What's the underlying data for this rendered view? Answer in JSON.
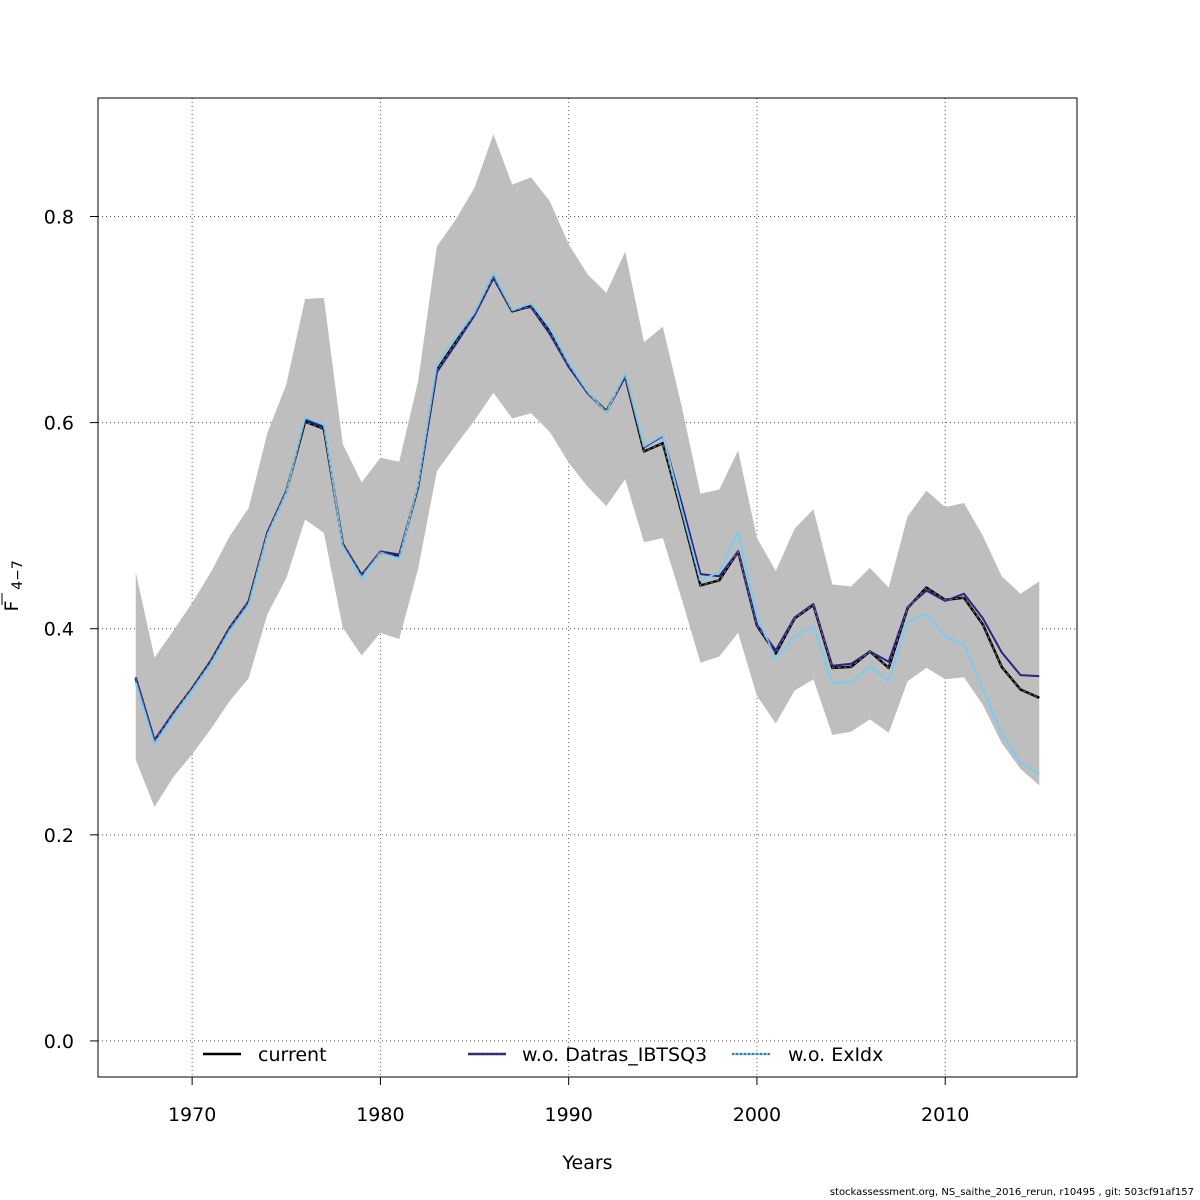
{
  "chart_data": {
    "type": "line",
    "xlabel": "Years",
    "ylabel": {
      "base": "F",
      "sub": "4−7"
    },
    "xlim": [
      1965,
      2017
    ],
    "ylim": [
      -0.035,
      0.915
    ],
    "x_ticks": [
      1970,
      1980,
      1990,
      2000,
      2010
    ],
    "y_ticks": [
      0.0,
      0.2,
      0.4,
      0.6,
      0.8
    ],
    "y_tick_labels": [
      "0.0",
      "0.2",
      "0.4",
      "0.6",
      "0.8"
    ],
    "grid": true,
    "legend_placement": "bottom",
    "x": [
      1967,
      1968,
      1969,
      1970,
      1971,
      1972,
      1973,
      1974,
      1975,
      1976,
      1977,
      1978,
      1979,
      1980,
      1981,
      1982,
      1983,
      1984,
      1985,
      1986,
      1987,
      1988,
      1989,
      1990,
      1991,
      1992,
      1993,
      1994,
      1995,
      1996,
      1997,
      1998,
      1999,
      2000,
      2001,
      2002,
      2003,
      2004,
      2005,
      2006,
      2007,
      2008,
      2009,
      2010,
      2011,
      2012,
      2013,
      2014,
      2015
    ],
    "band": {
      "color": "#bebebe",
      "upper": [
        0.455,
        0.372,
        0.398,
        0.425,
        0.455,
        0.49,
        0.517,
        0.59,
        0.637,
        0.72,
        0.721,
        0.579,
        0.542,
        0.566,
        0.562,
        0.64,
        0.771,
        0.797,
        0.828,
        0.88,
        0.831,
        0.838,
        0.815,
        0.773,
        0.744,
        0.726,
        0.766,
        0.678,
        0.693,
        0.616,
        0.531,
        0.535,
        0.573,
        0.488,
        0.456,
        0.497,
        0.516,
        0.443,
        0.441,
        0.459,
        0.44,
        0.509,
        0.534,
        0.518,
        0.522,
        0.49,
        0.451,
        0.434,
        0.446
      ],
      "lower": [
        0.273,
        0.227,
        0.256,
        0.278,
        0.303,
        0.33,
        0.352,
        0.414,
        0.449,
        0.506,
        0.493,
        0.401,
        0.374,
        0.396,
        0.39,
        0.458,
        0.553,
        0.578,
        0.602,
        0.629,
        0.604,
        0.609,
        0.591,
        0.561,
        0.538,
        0.519,
        0.545,
        0.484,
        0.488,
        0.429,
        0.367,
        0.373,
        0.396,
        0.335,
        0.308,
        0.34,
        0.351,
        0.297,
        0.3,
        0.312,
        0.299,
        0.349,
        0.362,
        0.351,
        0.353,
        0.326,
        0.289,
        0.264,
        0.248
      ]
    },
    "series": [
      {
        "name": "current",
        "color": "#000000",
        "dash": "",
        "values": [
          0.352,
          0.291,
          0.318,
          0.342,
          0.369,
          0.401,
          0.426,
          0.493,
          0.533,
          0.601,
          0.594,
          0.482,
          0.452,
          0.474,
          0.47,
          0.538,
          0.651,
          0.678,
          0.705,
          0.741,
          0.708,
          0.713,
          0.688,
          0.655,
          0.629,
          0.611,
          0.645,
          0.572,
          0.58,
          0.513,
          0.442,
          0.447,
          0.475,
          0.403,
          0.376,
          0.41,
          0.423,
          0.362,
          0.363,
          0.378,
          0.362,
          0.42,
          0.44,
          0.428,
          0.43,
          0.404,
          0.363,
          0.341,
          0.333
        ]
      },
      {
        "name": "w.o. Datras_IBTSQ3",
        "color": "#2b2485",
        "dash": "",
        "values": [
          0.353,
          0.292,
          0.318,
          0.342,
          0.369,
          0.401,
          0.426,
          0.493,
          0.533,
          0.603,
          0.596,
          0.482,
          0.452,
          0.475,
          0.472,
          0.538,
          0.649,
          0.676,
          0.704,
          0.74,
          0.709,
          0.712,
          0.686,
          0.654,
          0.629,
          0.61,
          0.645,
          0.576,
          0.587,
          0.522,
          0.453,
          0.451,
          0.475,
          0.404,
          0.379,
          0.411,
          0.424,
          0.364,
          0.366,
          0.378,
          0.368,
          0.421,
          0.437,
          0.427,
          0.434,
          0.41,
          0.377,
          0.355,
          0.354
        ]
      },
      {
        "name": "w.o. ExIdx",
        "color": "#7ccaf0",
        "dash": "",
        "values": [
          0.348,
          0.288,
          0.315,
          0.34,
          0.366,
          0.398,
          0.423,
          0.491,
          0.532,
          0.605,
          0.598,
          0.48,
          0.449,
          0.474,
          0.468,
          0.54,
          0.657,
          0.682,
          0.707,
          0.745,
          0.709,
          0.716,
          0.692,
          0.658,
          0.63,
          0.61,
          0.648,
          0.577,
          0.588,
          0.516,
          0.447,
          0.455,
          0.494,
          0.412,
          0.371,
          0.393,
          0.402,
          0.347,
          0.348,
          0.364,
          0.349,
          0.407,
          0.414,
          0.393,
          0.385,
          0.342,
          0.298,
          0.27,
          0.259
        ]
      }
    ],
    "legend": [
      {
        "label": "current",
        "color": "#000000",
        "dash": ""
      },
      {
        "label": "w.o. Datras_IBTSQ3",
        "color": "#2b2485",
        "dash": "3,2"
      },
      {
        "label": "w.o. ExIdx",
        "color": "#7ccaf0",
        "dash": "2,2"
      }
    ]
  },
  "footer_text": "stockassessment.org, NS_saithe_2016_rerun, r10495 , git: 503cf91af157"
}
